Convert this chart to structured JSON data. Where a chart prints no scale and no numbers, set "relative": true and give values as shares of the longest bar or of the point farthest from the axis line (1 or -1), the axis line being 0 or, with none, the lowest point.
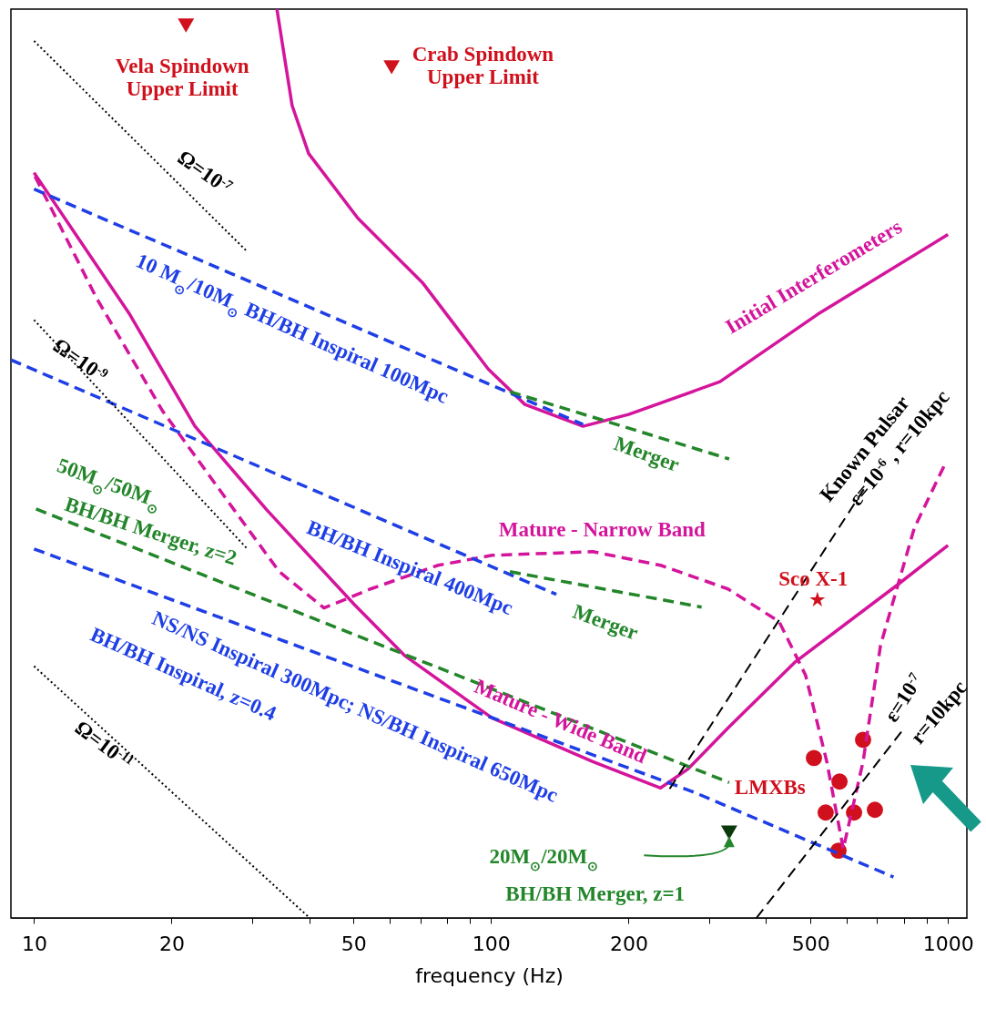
{
  "chart_data": {
    "type": "line",
    "relative": true,
    "log": "x",
    "xlabel": "frequency (Hz)",
    "xlim": [
      8.9,
      1100
    ],
    "xticks": [
      10,
      20,
      {
        "value": 30,
        "label": null
      },
      {
        "value": 40,
        "label": null
      },
      50,
      {
        "value": 60,
        "label": null
      },
      {
        "value": 70,
        "label": null
      },
      {
        "value": 80,
        "label": null
      },
      {
        "value": 90,
        "label": null
      },
      100,
      200,
      {
        "value": 300,
        "label": null
      },
      {
        "value": 400,
        "label": null
      },
      500,
      {
        "value": 600,
        "label": null
      },
      {
        "value": 700,
        "label": null
      },
      {
        "value": 800,
        "label": null
      },
      {
        "value": 900,
        "label": null
      },
      1000
    ],
    "series": [
      {
        "type": "line",
        "color": "#d4159c",
        "line_style": "solid",
        "x": [
          34.0,
          36.7,
          39.9,
          51.1,
          70.8,
          98.6,
          118.6,
          159,
          200,
          317,
          518,
          1000
        ],
        "values": [
          1.0,
          0.894,
          0.841,
          0.77,
          0.699,
          0.604,
          0.565,
          0.541,
          0.554,
          0.59,
          0.664,
          0.752
        ]
      },
      {
        "type": "line",
        "color": "#d4159c",
        "line_style": "solid",
        "x": [
          10,
          16.2,
          22.5,
          32.3,
          50.2,
          64.6,
          100.5,
          167,
          235,
          270,
          330,
          464,
          773,
          1000
        ],
        "values": [
          0.82,
          0.664,
          0.541,
          0.449,
          0.345,
          0.289,
          0.22,
          0.172,
          0.143,
          0.164,
          0.209,
          0.282,
          0.366,
          0.41
        ]
      },
      {
        "type": "line",
        "color": "#d4159c",
        "line_style": "dashed",
        "x": [
          10.05,
          13.7,
          19.1,
          27.4,
          34.4,
          43.1,
          54.5,
          76.6,
          100.5,
          167,
          235,
          330,
          427,
          488,
          543,
          590,
          652,
          712,
          844,
          982
        ],
        "values": [
          0.816,
          0.682,
          0.558,
          0.449,
          0.381,
          0.341,
          0.362,
          0.388,
          0.399,
          0.403,
          0.388,
          0.362,
          0.326,
          0.267,
          0.172,
          0.076,
          0.172,
          0.3,
          0.429,
          0.498
        ]
      },
      {
        "type": "line",
        "color": "#1f3fe6",
        "line_style": "dashed",
        "x": [
          10,
          159
        ],
        "values": [
          0.802,
          0.543
        ]
      },
      {
        "type": "line",
        "color": "#1f3fe6",
        "line_style": "dashed",
        "x": [
          8.9,
          139
        ],
        "values": [
          0.614,
          0.356
        ]
      },
      {
        "type": "line",
        "color": "#1f3fe6",
        "line_style": "dashed",
        "x": [
          10,
          276,
          760
        ],
        "values": [
          0.406,
          0.139,
          0.045
        ]
      },
      {
        "type": "line",
        "color": "#23862a",
        "line_style": "dashed",
        "x": [
          110,
          332
        ],
        "values": [
          0.579,
          0.505
        ]
      },
      {
        "type": "line",
        "color": "#23862a",
        "line_style": "dashed",
        "x": [
          110,
          289
        ],
        "values": [
          0.381,
          0.342
        ]
      },
      {
        "type": "line",
        "color": "#23862a",
        "line_style": "dashed",
        "x": [
          10.1,
          332
        ],
        "values": [
          0.45,
          0.149
        ]
      },
      {
        "type": "line",
        "color": "#000000",
        "line_style": "dotted",
        "x": [
          10,
          29.3
        ],
        "values": [
          0.965,
          0.733
        ]
      },
      {
        "type": "line",
        "color": "#000000",
        "line_style": "dotted",
        "x": [
          10,
          29.3
        ],
        "values": [
          0.658,
          0.406
        ]
      },
      {
        "type": "line",
        "color": "#000000",
        "line_style": "dotted",
        "x": [
          10,
          40.1
        ],
        "values": [
          0.277,
          0
        ]
      },
      {
        "type": "line",
        "color": "#000000",
        "line_style": "dashed",
        "x": [
          246,
          661
        ],
        "values": [
          0.142,
          0.475
        ]
      },
      {
        "type": "line",
        "color": "#000000",
        "line_style": "dashed",
        "x": [
          381,
          794
        ],
        "values": [
          0,
          0.206
        ]
      },
      {
        "type": "scatter",
        "marker": "triangle",
        "color": "#d0101c",
        "x": [
          21.5,
          60.6
        ],
        "values": [
          0.982,
          0.936
        ]
      },
      {
        "type": "scatter",
        "marker": "star",
        "color": "#d0101c",
        "x": [
          518
        ],
        "values": [
          0.35
        ]
      },
      {
        "type": "scatter",
        "marker": "circle",
        "color": "#d0101c",
        "x": [
          509,
          579,
          652,
          540,
          623,
          692,
          576
        ],
        "values": [
          0.176,
          0.15,
          0.196,
          0.116,
          0.116,
          0.119,
          0.074
        ]
      },
      {
        "type": "scatter",
        "marker": "triangle",
        "color": "#0a3a0a",
        "x": [
          332
        ],
        "values": [
          0.094
        ]
      }
    ],
    "annotations": [
      "Vela Spindown\nUpper Limit",
      "Crab Spindown\nUpper Limit",
      "Ω=10$^{-7}$",
      "10 M$_{⊙}$/10M$_{⊙}$ BH/BH Inspiral 100Mpc",
      "Initial Interferometers",
      "Ω=10$^{-9}$",
      "Merger",
      "Known Pulsar",
      "ε=10$^{-6}$ , r=10kpc",
      "50M$_{⊙}$/50M$_{⊙}$",
      "BH/BH Merger, z=2",
      "BH/BH Inspiral 400Mpc",
      "Mature - Narrow Band",
      "Merger",
      "Sco X-1",
      "NS/NS Inspiral 300Mpc; NS/BH Inspiral 650Mpc",
      "BH/BH Inspiral, z=0.4",
      "Mature - Wide Band",
      "Ω=10$^{-11}$",
      "ε=10$^{-7}$",
      "r=10kpc",
      "LMXBs",
      "20M$_{⊙}$/20M$_{⊙}$",
      "BH/BH Merger, z=1"
    ]
  }
}
